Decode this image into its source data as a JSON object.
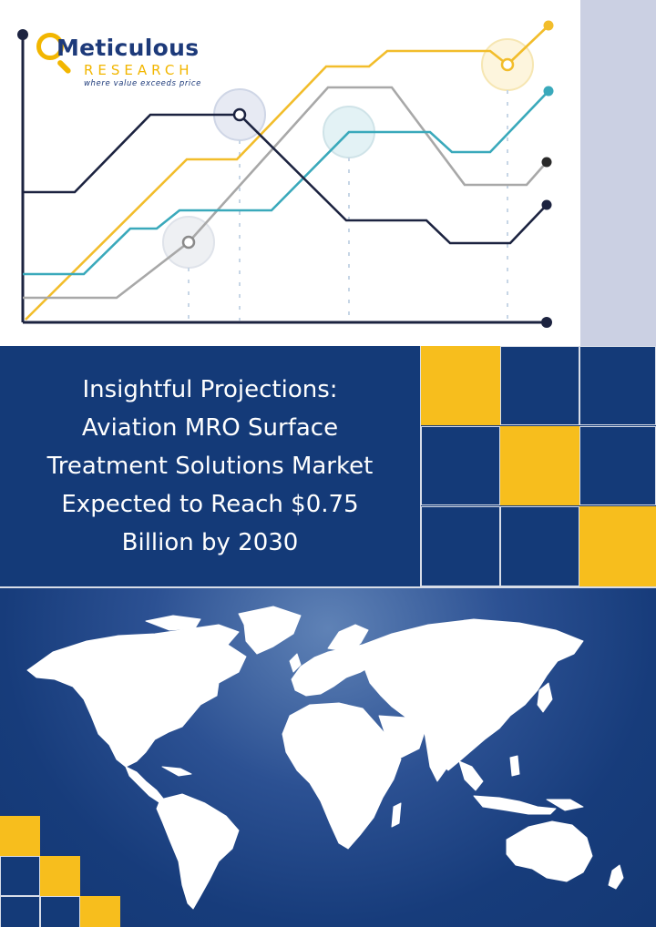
{
  "brand": {
    "name": "Meticulous",
    "sub": "RESEARCH",
    "tagline": "where value exceeds price"
  },
  "cover": {
    "title_lines": [
      "Insightful Projections:",
      "Aviation MRO Surface",
      "Treatment Solutions Market",
      "Expected to Reach $0.75",
      "Billion by 2030"
    ]
  },
  "colors": {
    "navy": "#143a78",
    "yellow": "#f7be1d",
    "teal": "#3aa9bb",
    "gray": "#a8a8a8",
    "dark": "#1c2340",
    "panel": "#cbd0e3"
  },
  "decor": {
    "chart_lines": [
      "yellow-line",
      "gray-line",
      "teal-line",
      "dark-line"
    ],
    "map": "world-map"
  }
}
